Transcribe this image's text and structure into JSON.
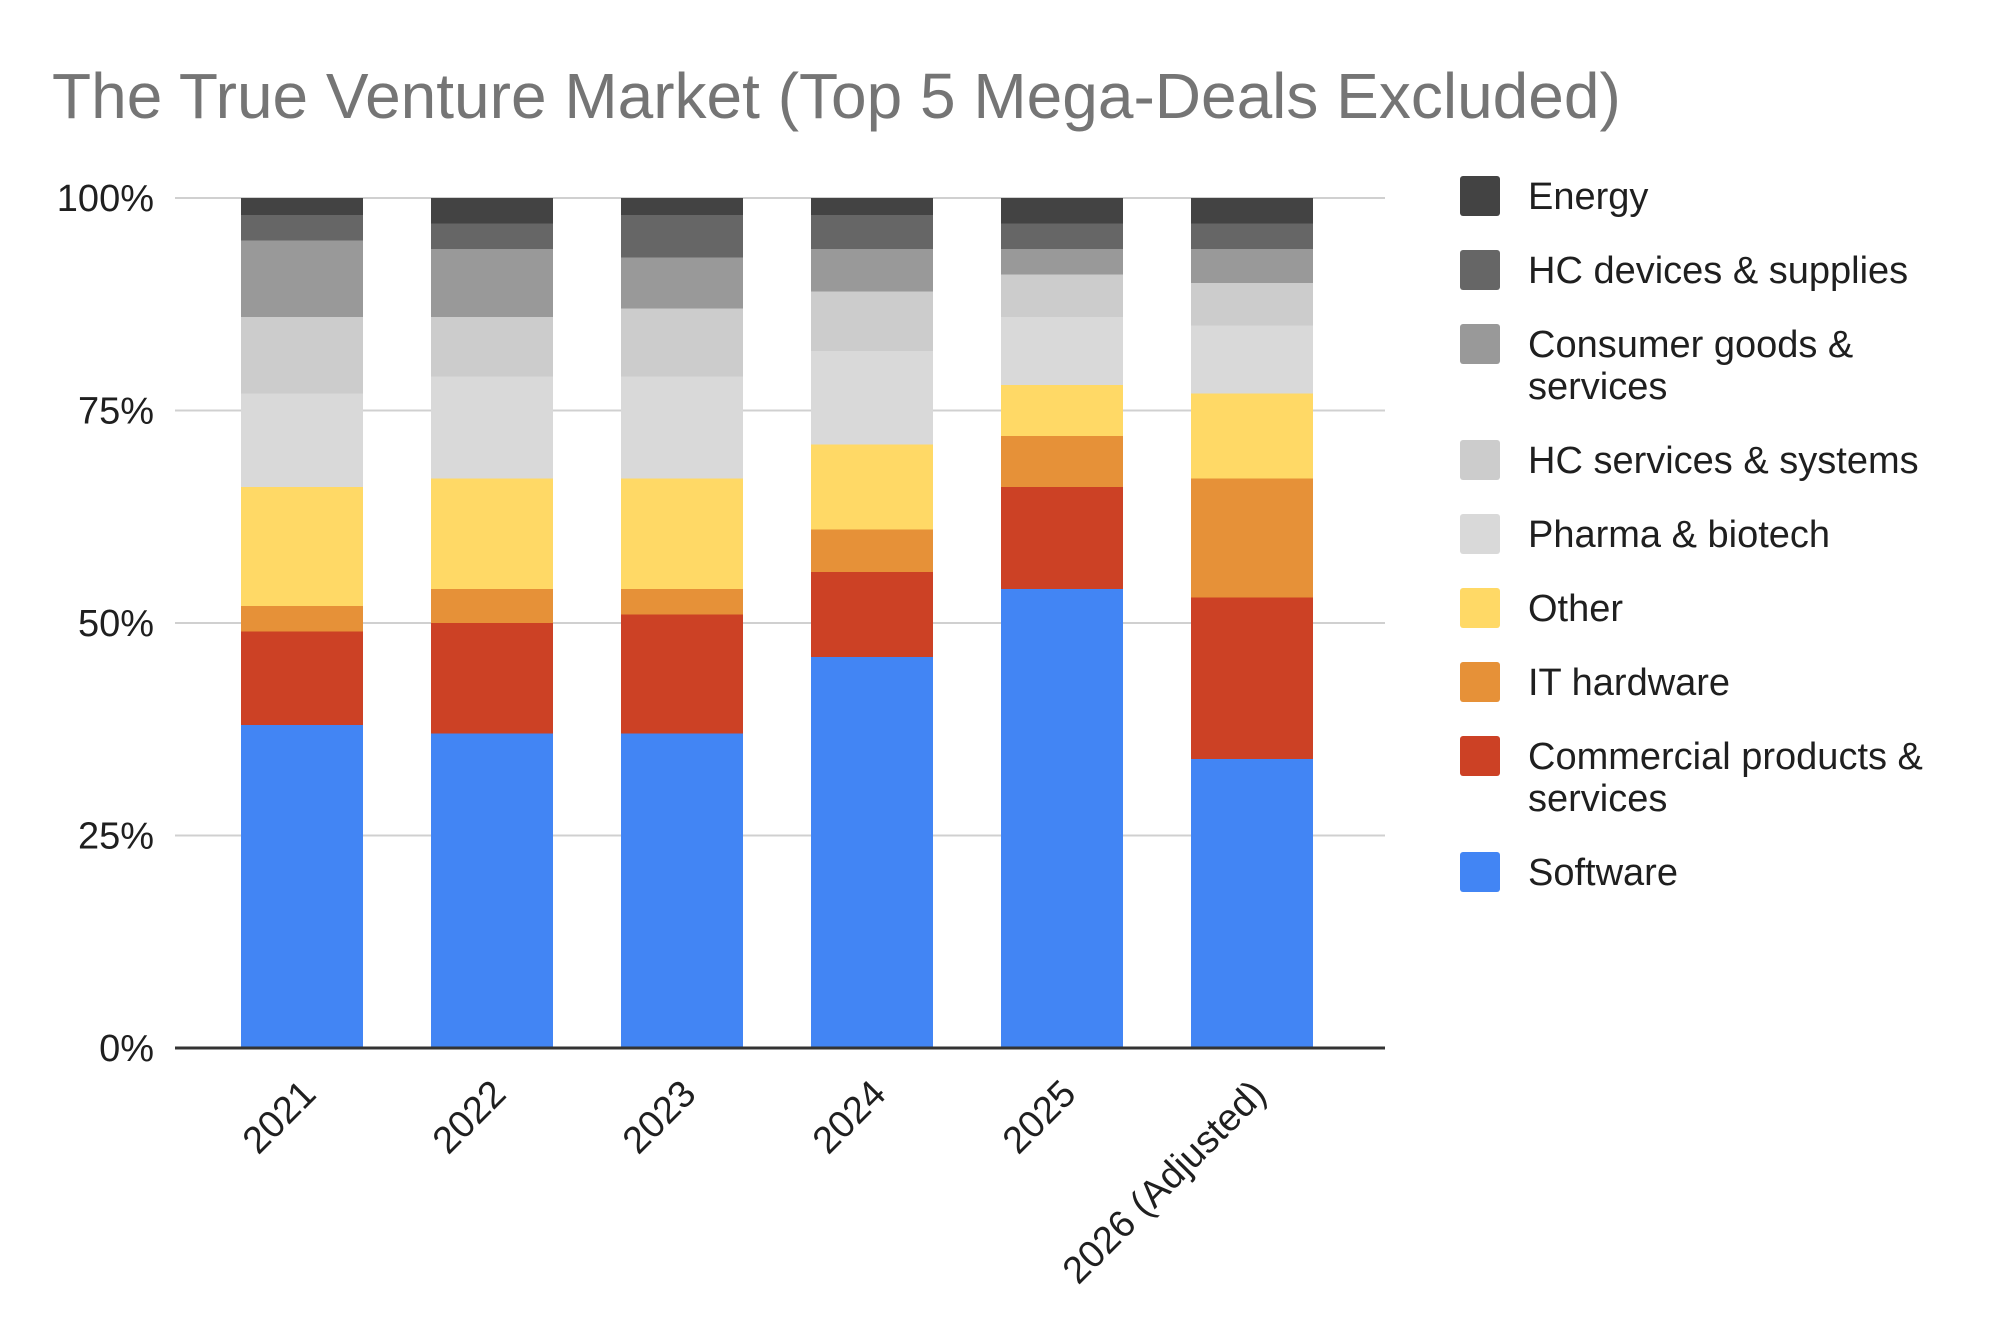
{
  "chart_data": {
    "type": "bar",
    "stacked": true,
    "normalized": true,
    "title": "The True Venture Market (Top 5 Mega-Deals Excluded)",
    "xlabel": "",
    "ylabel": "",
    "ylim": [
      0,
      100
    ],
    "y_ticks": [
      "0%",
      "25%",
      "50%",
      "75%",
      "100%"
    ],
    "grid": true,
    "legend_position": "right",
    "categories": [
      "2021",
      "2022",
      "2023",
      "2024",
      "2025",
      "2026 (Adjusted)"
    ],
    "series": [
      {
        "name": "Software",
        "color": "#4285f4",
        "values": [
          38,
          37,
          37,
          46,
          54,
          34
        ]
      },
      {
        "name": "Commercial products & services",
        "color": "#cc4125",
        "values": [
          11,
          13,
          14,
          10,
          12,
          19
        ]
      },
      {
        "name": "IT hardware",
        "color": "#e69138",
        "values": [
          3,
          4,
          3,
          5,
          6,
          14
        ]
      },
      {
        "name": "Other",
        "color": "#ffd966",
        "values": [
          14,
          13,
          13,
          10,
          6,
          10
        ]
      },
      {
        "name": "Pharma & biotech",
        "color": "#d9d9d9",
        "values": [
          11,
          12,
          12,
          11,
          8,
          8
        ]
      },
      {
        "name": "HC services & systems",
        "color": "#cccccc",
        "values": [
          9,
          7,
          8,
          7,
          5,
          5
        ]
      },
      {
        "name": "Consumer goods & services",
        "color": "#999999",
        "values": [
          9,
          8,
          6,
          5,
          3,
          4
        ]
      },
      {
        "name": "HC devices & supplies",
        "color": "#666666",
        "values": [
          3,
          3,
          5,
          4,
          3,
          3
        ]
      },
      {
        "name": "Energy",
        "color": "#434343",
        "values": [
          2,
          3,
          2,
          2,
          3,
          3
        ]
      }
    ],
    "legend": [
      {
        "label": [
          "Energy"
        ],
        "color": "#434343"
      },
      {
        "label": [
          "HC devices & supplies"
        ],
        "color": "#666666"
      },
      {
        "label": [
          "Consumer goods &",
          "services"
        ],
        "color": "#999999"
      },
      {
        "label": [
          "HC services & systems"
        ],
        "color": "#cccccc"
      },
      {
        "label": [
          "Pharma & biotech"
        ],
        "color": "#d9d9d9"
      },
      {
        "label": [
          "Other"
        ],
        "color": "#ffd966"
      },
      {
        "label": [
          "IT hardware"
        ],
        "color": "#e69138"
      },
      {
        "label": [
          "Commercial products &",
          "services"
        ],
        "color": "#cc4125"
      },
      {
        "label": [
          "Software"
        ],
        "color": "#4285f4"
      }
    ]
  }
}
